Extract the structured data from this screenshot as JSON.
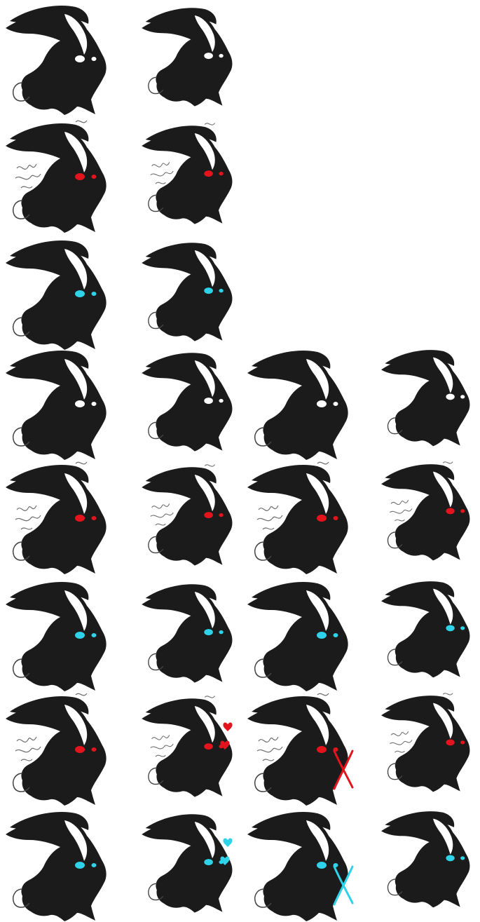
{
  "sheet": {
    "background": "#ffffff",
    "body_color": "#1b1b1b",
    "ear_highlight": "#ffffff",
    "eye_colors": {
      "white": "#ffffff",
      "red": "#e3141c",
      "cyan": "#2ed3ea"
    },
    "mark_colors": {
      "red": "#e3141c",
      "cyan": "#2ed3ea"
    },
    "rows": [
      {
        "eyes": "white",
        "smoke": false,
        "sprites": [
          {
            "icon": "rabbit-head-icon",
            "pose": "front"
          },
          {
            "icon": "rabbit-head-icon",
            "pose": "turned"
          }
        ]
      },
      {
        "eyes": "red",
        "smoke": true,
        "sprites": [
          {
            "icon": "rabbit-head-icon",
            "pose": "front"
          },
          {
            "icon": "rabbit-head-icon",
            "pose": "turned"
          }
        ]
      },
      {
        "eyes": "cyan",
        "smoke": false,
        "sprites": [
          {
            "icon": "rabbit-head-icon",
            "pose": "front"
          },
          {
            "icon": "rabbit-head-icon",
            "pose": "turned"
          }
        ]
      },
      {
        "eyes": "white",
        "smoke": false,
        "sprites": [
          {
            "icon": "rabbit-head-icon",
            "pose": "front"
          },
          {
            "icon": "rabbit-head-icon",
            "pose": "turned"
          },
          {
            "icon": "rabbit-head-icon",
            "pose": "front"
          },
          {
            "icon": "rabbit-head-icon",
            "pose": "hunched"
          }
        ]
      },
      {
        "eyes": "red",
        "smoke": true,
        "sprites": [
          {
            "icon": "rabbit-head-icon",
            "pose": "front"
          },
          {
            "icon": "rabbit-head-icon",
            "pose": "turned"
          },
          {
            "icon": "rabbit-head-icon",
            "pose": "front"
          },
          {
            "icon": "rabbit-head-icon",
            "pose": "hunched"
          }
        ]
      },
      {
        "eyes": "cyan",
        "smoke": false,
        "sprites": [
          {
            "icon": "rabbit-head-icon",
            "pose": "front"
          },
          {
            "icon": "rabbit-head-icon",
            "pose": "turned"
          },
          {
            "icon": "rabbit-head-icon",
            "pose": "front"
          },
          {
            "icon": "rabbit-head-icon",
            "pose": "hunched"
          }
        ]
      },
      {
        "eyes": "red",
        "smoke": true,
        "sprites": [
          {
            "icon": "rabbit-head-icon",
            "pose": "front"
          },
          {
            "icon": "rabbit-head-icon",
            "pose": "turned",
            "mark": "hearts"
          },
          {
            "icon": "rabbit-head-icon",
            "pose": "front",
            "mark": "cross"
          },
          {
            "icon": "rabbit-head-icon",
            "pose": "hunched"
          }
        ]
      },
      {
        "eyes": "cyan",
        "smoke": false,
        "sprites": [
          {
            "icon": "rabbit-head-icon",
            "pose": "front"
          },
          {
            "icon": "rabbit-head-icon",
            "pose": "turned",
            "mark": "hearts"
          },
          {
            "icon": "rabbit-head-icon",
            "pose": "front",
            "mark": "cross"
          },
          {
            "icon": "rabbit-head-icon",
            "pose": "hunched"
          }
        ]
      }
    ]
  }
}
